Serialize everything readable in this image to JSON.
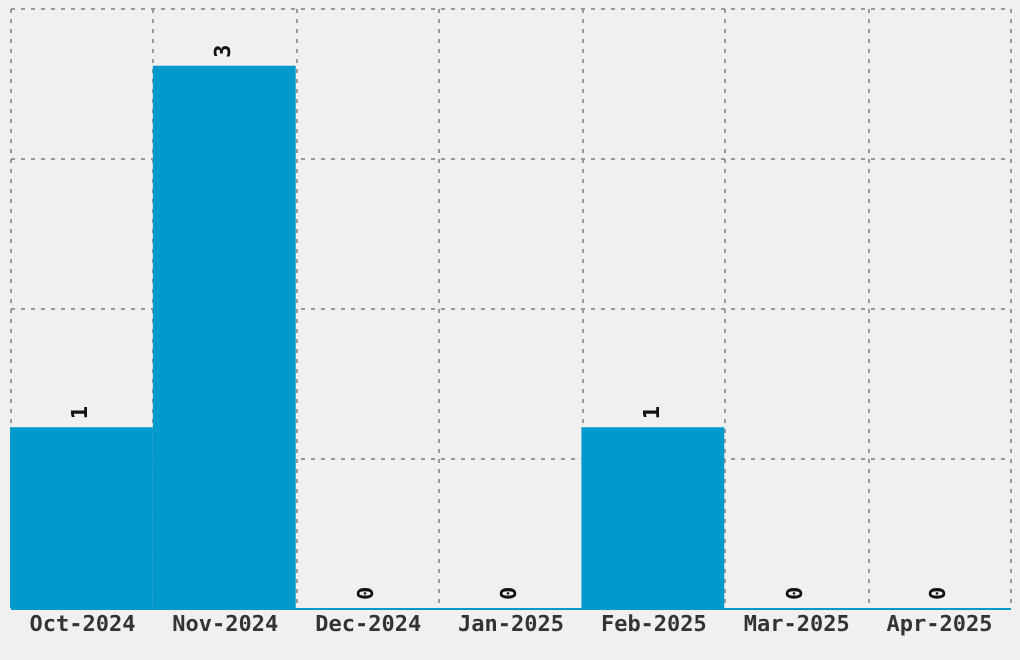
{
  "chart_data": {
    "type": "bar",
    "categories": [
      "Oct-2024",
      "Nov-2024",
      "Dec-2024",
      "Jan-2025",
      "Feb-2025",
      "Mar-2025",
      "Apr-2025"
    ],
    "values": [
      1,
      3,
      0,
      0,
      1,
      0,
      0
    ],
    "color": "#0099cc",
    "ylim": [
      0,
      3.32
    ],
    "yticks": [
      {
        "value": 0,
        "label": null
      },
      {
        "value": 0.83,
        "label": null
      },
      {
        "value": 1.66,
        "label": null
      },
      {
        "value": 2.49,
        "label": null
      },
      {
        "value": 3.32,
        "label": null
      }
    ],
    "grid": true,
    "data_labels": true,
    "tick_labels": "x"
  }
}
